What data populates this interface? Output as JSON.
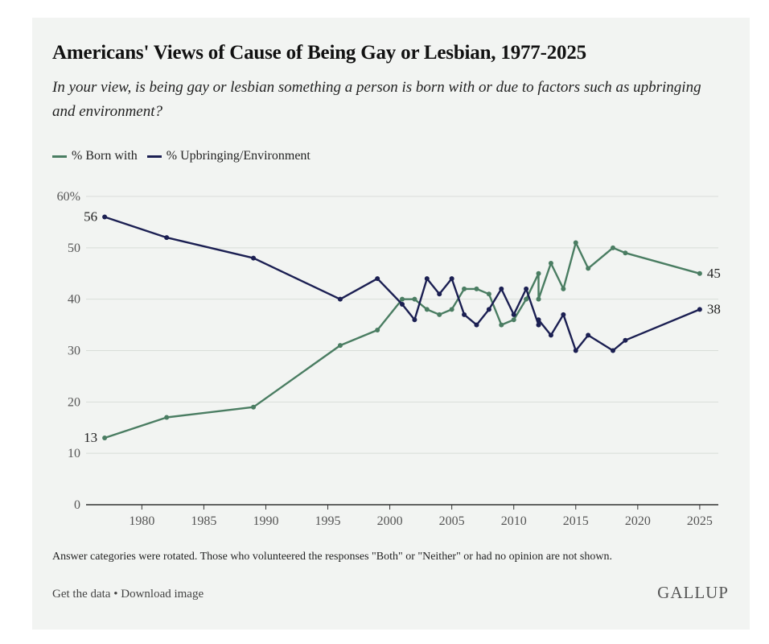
{
  "title": "Americans' Views of Cause of Being Gay or Lesbian, 1977-2025",
  "subtitle": "In your view, is being gay or lesbian something a person is born with or due to factors such as upbringing and environment?",
  "note": "Answer categories were rotated. Those who volunteered the responses \"Both\" or \"Neither\" or had no opinion are not shown.",
  "footer": {
    "get_data": "Get the data",
    "separator": "•",
    "download": "Download image"
  },
  "brand": "GALLUP",
  "colors": {
    "born_with": "#4a7d62",
    "upbringing": "#1b1f52",
    "grid": "#d9ddd9",
    "axis": "#333333",
    "background": "#f2f4f2"
  },
  "chart_data": {
    "type": "line",
    "title": "Americans' Views of Cause of Being Gay or Lesbian, 1977-2025",
    "xlabel": "",
    "ylabel": "",
    "xlim": [
      1975.5,
      2026.5
    ],
    "ylim": [
      0,
      60
    ],
    "y_ticks": [
      "0",
      "10",
      "20",
      "30",
      "40",
      "50",
      "60%"
    ],
    "x_ticks": [
      "1980",
      "1985",
      "1990",
      "1995",
      "2000",
      "2005",
      "2010",
      "2015",
      "2020",
      "2025"
    ],
    "grid": true,
    "legend_position": "top-left",
    "series": [
      {
        "name": "% Born with",
        "color": "#4a7d62",
        "points": [
          {
            "x": 1977,
            "y": 13
          },
          {
            "x": 1982,
            "y": 17
          },
          {
            "x": 1989,
            "y": 19
          },
          {
            "x": 1996,
            "y": 31
          },
          {
            "x": 1999,
            "y": 34
          },
          {
            "x": 2001,
            "y": 40
          },
          {
            "x": 2002,
            "y": 40
          },
          {
            "x": 2003,
            "y": 38
          },
          {
            "x": 2004,
            "y": 37
          },
          {
            "x": 2005,
            "y": 38
          },
          {
            "x": 2006,
            "y": 42
          },
          {
            "x": 2007,
            "y": 42
          },
          {
            "x": 2008,
            "y": 41
          },
          {
            "x": 2009,
            "y": 35
          },
          {
            "x": 2010,
            "y": 36
          },
          {
            "x": 2011,
            "y": 40
          },
          {
            "x": 2012,
            "y": 45
          },
          {
            "x": 2012,
            "y": 40
          },
          {
            "x": 2013,
            "y": 47
          },
          {
            "x": 2014,
            "y": 42
          },
          {
            "x": 2015,
            "y": 51
          },
          {
            "x": 2016,
            "y": 46
          },
          {
            "x": 2018,
            "y": 50
          },
          {
            "x": 2019,
            "y": 49
          },
          {
            "x": 2025,
            "y": 45
          }
        ],
        "start_label": "13",
        "end_label": "45"
      },
      {
        "name": "% Upbringing/Environment",
        "color": "#1b1f52",
        "points": [
          {
            "x": 1977,
            "y": 56
          },
          {
            "x": 1982,
            "y": 52
          },
          {
            "x": 1989,
            "y": 48
          },
          {
            "x": 1996,
            "y": 40
          },
          {
            "x": 1999,
            "y": 44
          },
          {
            "x": 2001,
            "y": 39
          },
          {
            "x": 2002,
            "y": 36
          },
          {
            "x": 2003,
            "y": 44
          },
          {
            "x": 2004,
            "y": 41
          },
          {
            "x": 2005,
            "y": 44
          },
          {
            "x": 2006,
            "y": 37
          },
          {
            "x": 2007,
            "y": 35
          },
          {
            "x": 2008,
            "y": 38
          },
          {
            "x": 2009,
            "y": 42
          },
          {
            "x": 2010,
            "y": 37
          },
          {
            "x": 2011,
            "y": 42
          },
          {
            "x": 2012,
            "y": 35
          },
          {
            "x": 2012,
            "y": 36
          },
          {
            "x": 2013,
            "y": 33
          },
          {
            "x": 2014,
            "y": 37
          },
          {
            "x": 2015,
            "y": 30
          },
          {
            "x": 2016,
            "y": 33
          },
          {
            "x": 2018,
            "y": 30
          },
          {
            "x": 2019,
            "y": 32
          },
          {
            "x": 2025,
            "y": 38
          }
        ],
        "start_label": "56",
        "end_label": "38"
      }
    ]
  }
}
